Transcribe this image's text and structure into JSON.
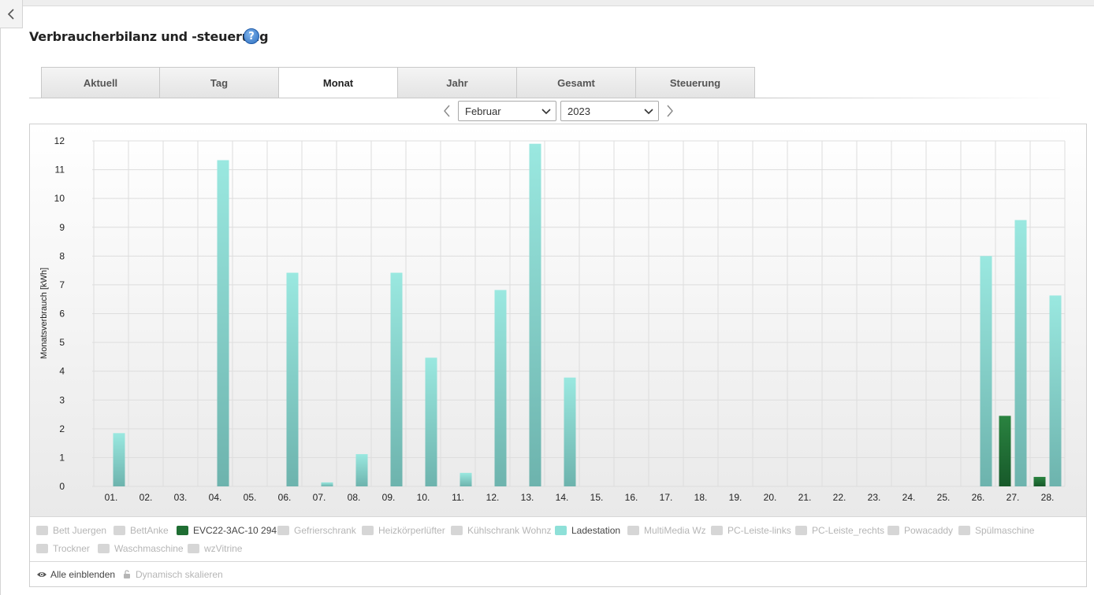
{
  "page": {
    "title": "Verbraucherbilanz und -steuerung",
    "help_icon": "question-mark-icon"
  },
  "tabs": [
    {
      "label": "Aktuell",
      "active": false
    },
    {
      "label": "Tag",
      "active": false
    },
    {
      "label": "Monat",
      "active": true
    },
    {
      "label": "Jahr",
      "active": false
    },
    {
      "label": "Gesamt",
      "active": false
    },
    {
      "label": "Steuerung",
      "active": false
    }
  ],
  "period": {
    "month": "Februar",
    "year": "2023"
  },
  "chart_data": {
    "type": "bar",
    "ylabel": "Monatsverbrauch [kWh]",
    "ylim": [
      0,
      12
    ],
    "yticks": [
      0,
      1,
      2,
      3,
      4,
      5,
      6,
      7,
      8,
      9,
      10,
      11,
      12
    ],
    "grid": true,
    "categories": [
      "01.",
      "02.",
      "03.",
      "04.",
      "05.",
      "06.",
      "07.",
      "08.",
      "09.",
      "10.",
      "11.",
      "12.",
      "13.",
      "14.",
      "15.",
      "16.",
      "17.",
      "18.",
      "19.",
      "20.",
      "21.",
      "22.",
      "23.",
      "24.",
      "25.",
      "26.",
      "27.",
      "28."
    ],
    "series": [
      {
        "name": "EVC22-3AC-10 294",
        "color": "#1f6e33",
        "values": [
          0,
          0,
          0,
          0,
          0,
          0,
          0,
          0,
          0,
          0,
          0,
          0,
          0,
          0,
          0,
          0,
          0,
          0,
          0,
          0,
          0,
          0,
          0,
          0,
          0,
          0,
          2.45,
          0.33
        ]
      },
      {
        "name": "Ladestation",
        "color": "#8ee0d8",
        "values": [
          1.85,
          0,
          0,
          11.33,
          0,
          7.42,
          0.14,
          1.12,
          7.42,
          4.47,
          0.47,
          6.82,
          11.9,
          3.78,
          0,
          0,
          0,
          0,
          0,
          0,
          0,
          0,
          0,
          0,
          0,
          8.0,
          9.25,
          6.63
        ]
      }
    ]
  },
  "legend": [
    {
      "label": "Bett Juergen",
      "active": false
    },
    {
      "label": "BettAnke",
      "active": false
    },
    {
      "label": "EVC22-3AC-10 294",
      "active": true,
      "color": "#1f6e33"
    },
    {
      "label": "Gefrierschrank",
      "active": false
    },
    {
      "label": "Heizkörperlüfter",
      "active": false
    },
    {
      "label": "Kühlschrank Wohnz",
      "active": false
    },
    {
      "label": "Ladestation",
      "active": true,
      "color": "#8ee0d8"
    },
    {
      "label": "MultiMedia Wz",
      "active": false
    },
    {
      "label": "PC-Leiste-links",
      "active": false
    },
    {
      "label": "PC-Leiste_rechts",
      "active": false
    },
    {
      "label": "Powacaddy",
      "active": false
    },
    {
      "label": "Spülmaschine",
      "active": false
    },
    {
      "label": "Trockner",
      "active": false
    },
    {
      "label": "Waschmaschine",
      "active": false
    },
    {
      "label": "wzVitrine",
      "active": false
    }
  ],
  "footer": {
    "show_all_label": "Alle einblenden",
    "show_all_icon": "eye-icon",
    "dynamic_scale_label": "Dynamisch skalieren",
    "dynamic_scale_icon": "unlock-icon"
  }
}
